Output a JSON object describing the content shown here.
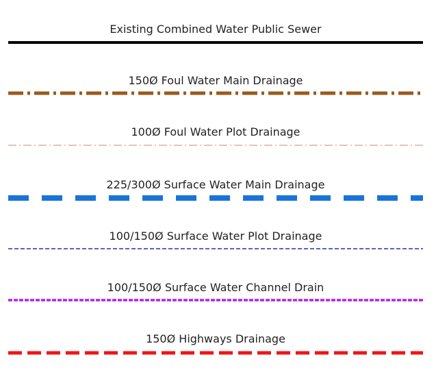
{
  "legend": {
    "items": [
      {
        "label": "Existing Combined Water Public Sewer"
      },
      {
        "label": "150Ø Foul Water Main Drainage"
      },
      {
        "label": "100Ø Foul Water Plot Drainage"
      },
      {
        "label": "225/300Ø Surface Water Main Drainage"
      },
      {
        "label": "100/150Ø Surface Water Plot Drainage"
      },
      {
        "label": "100/150Ø Surface Water Channel Drain"
      },
      {
        "label": "150Ø Highways Drainage"
      }
    ]
  }
}
